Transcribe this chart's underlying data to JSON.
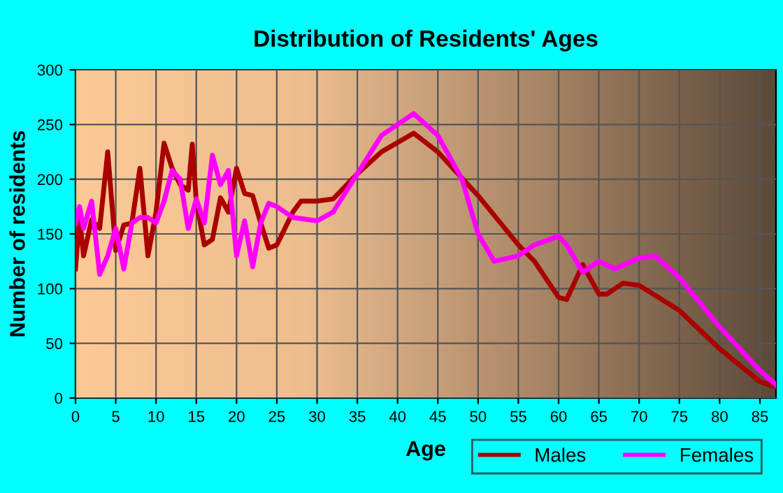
{
  "chart_data": {
    "type": "line",
    "title": "Distribution of Residents' Ages",
    "xlabel": "Age",
    "ylabel": "Number of residents",
    "xlim": [
      0,
      87
    ],
    "xticks": [
      0,
      5,
      10,
      15,
      20,
      25,
      30,
      35,
      40,
      45,
      50,
      55,
      60,
      65,
      70,
      75,
      80,
      85
    ],
    "ylim": [
      0,
      300
    ],
    "yticks": [
      0,
      50,
      100,
      150,
      200,
      250,
      300
    ],
    "grid": true,
    "legend": "bottom right",
    "line_style": "solid",
    "marker": "none",
    "series": [
      {
        "name": "Males",
        "color": "#aa0000",
        "x": [
          0,
          0.5,
          1,
          2,
          3,
          4,
          5,
          6,
          7,
          8,
          9,
          10,
          11,
          12,
          13,
          14,
          14.5,
          15,
          16,
          17,
          18,
          19,
          20,
          21,
          22,
          23,
          24,
          25,
          27,
          28,
          30,
          32,
          35,
          38,
          42,
          45,
          50,
          55,
          57,
          60,
          61,
          63,
          65,
          66,
          68,
          70,
          75,
          80,
          85,
          87
        ],
        "values": [
          118,
          165,
          130,
          163,
          155,
          225,
          135,
          158,
          160,
          210,
          130,
          170,
          233,
          210,
          195,
          190,
          232,
          180,
          140,
          145,
          183,
          170,
          210,
          187,
          185,
          160,
          137,
          140,
          170,
          180,
          180,
          182,
          205,
          225,
          242,
          225,
          185,
          140,
          125,
          92,
          90,
          122,
          95,
          95,
          105,
          103,
          80,
          45,
          15,
          10
        ]
      },
      {
        "name": "Females",
        "color": "#ff00ff",
        "x": [
          0,
          0.5,
          1,
          2,
          3,
          4,
          5,
          6,
          7,
          8,
          9,
          10,
          11,
          12,
          13,
          14,
          15,
          16,
          17,
          18,
          19,
          20,
          21,
          22,
          23,
          24,
          25,
          27,
          30,
          32,
          35,
          38,
          42,
          45,
          48,
          50,
          52,
          55,
          57,
          60,
          61,
          63,
          65,
          67,
          70,
          72,
          75,
          80,
          85,
          87
        ],
        "values": [
          160,
          175,
          155,
          180,
          113,
          130,
          155,
          118,
          160,
          165,
          165,
          160,
          180,
          208,
          200,
          155,
          182,
          160,
          222,
          195,
          208,
          130,
          162,
          120,
          160,
          178,
          175,
          165,
          162,
          170,
          205,
          240,
          260,
          240,
          200,
          150,
          125,
          130,
          140,
          148,
          140,
          115,
          125,
          118,
          128,
          130,
          110,
          65,
          25,
          12
        ]
      }
    ]
  }
}
